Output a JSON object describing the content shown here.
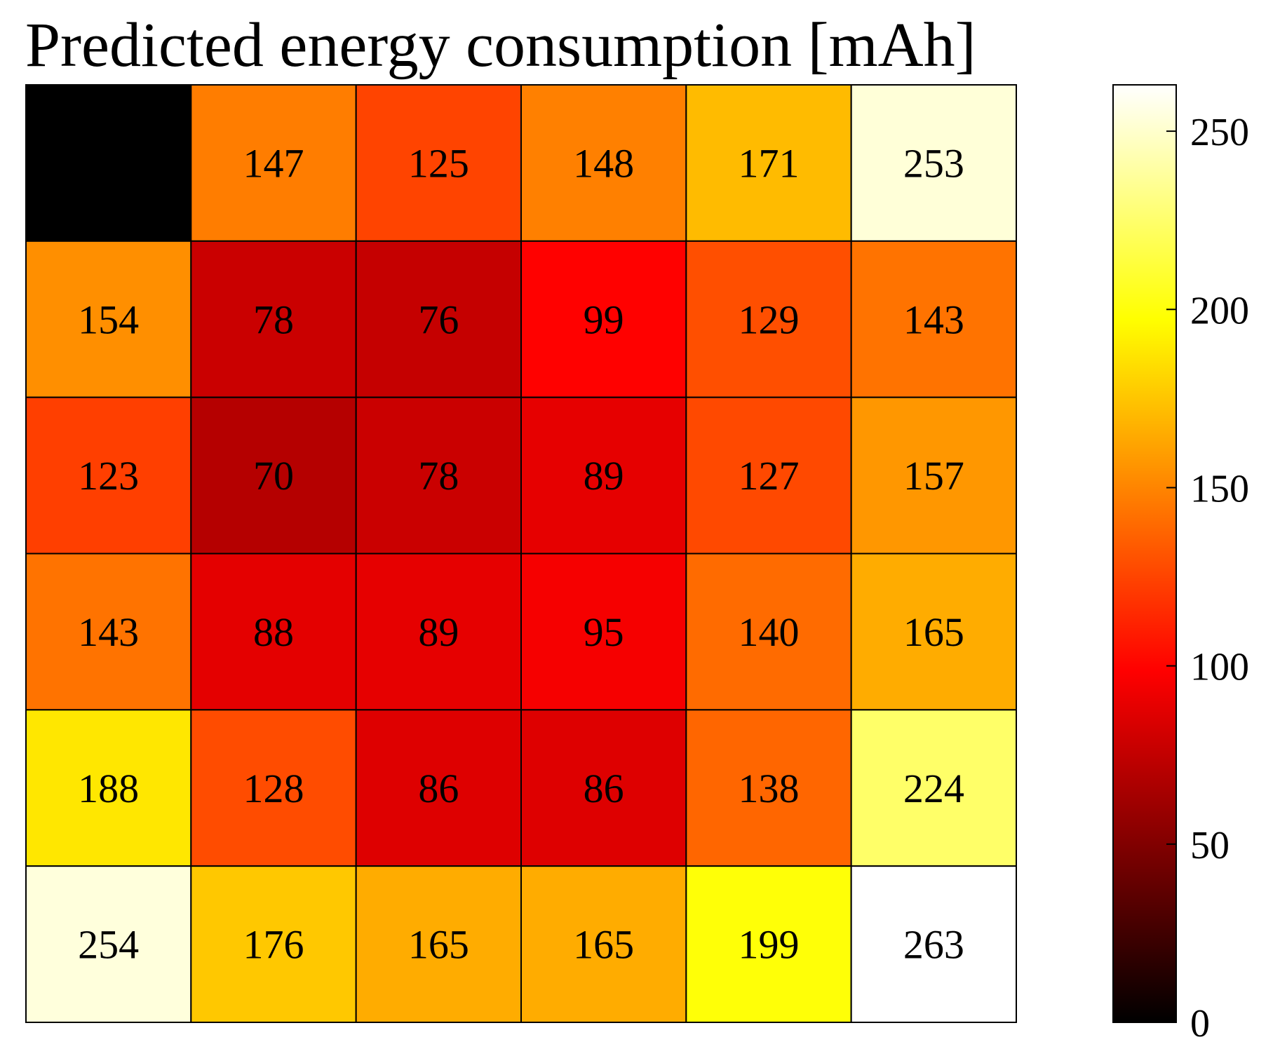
{
  "chart_data": {
    "type": "heatmap",
    "title": "Predicted energy consumption [mAh]",
    "colormap": "hot",
    "xlabel": "",
    "ylabel": "",
    "rows": 6,
    "cols": 6,
    "values": [
      [
        0,
        147,
        125,
        148,
        171,
        253
      ],
      [
        154,
        78,
        76,
        99,
        129,
        143
      ],
      [
        123,
        70,
        78,
        89,
        127,
        157
      ],
      [
        143,
        88,
        89,
        95,
        140,
        165
      ],
      [
        188,
        128,
        86,
        86,
        138,
        224
      ],
      [
        254,
        176,
        165,
        165,
        199,
        263
      ]
    ],
    "labels": [
      [
        "",
        "147",
        "125",
        "148",
        "171",
        "253"
      ],
      [
        "154",
        "78",
        "76",
        "99",
        "129",
        "143"
      ],
      [
        "123",
        "70",
        "78",
        "89",
        "127",
        "157"
      ],
      [
        "143",
        "88",
        "89",
        "95",
        "140",
        "165"
      ],
      [
        "188",
        "128",
        "86",
        "86",
        "138",
        "224"
      ],
      [
        "254",
        "176",
        "165",
        "165",
        "199",
        "263"
      ]
    ],
    "colorbar": {
      "min": 0,
      "max": 263,
      "ticks": [
        0,
        50,
        100,
        150,
        200,
        250
      ],
      "tick_labels": [
        "0",
        "50",
        "100",
        "150",
        "200",
        "250"
      ]
    }
  }
}
